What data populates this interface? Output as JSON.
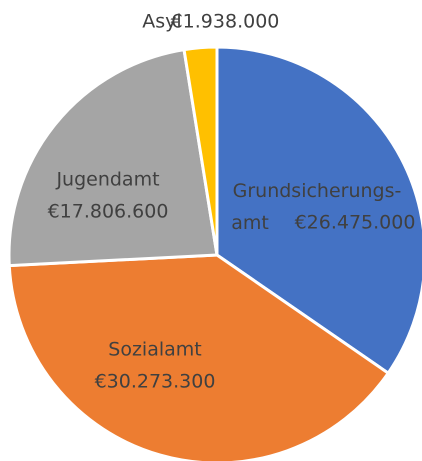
{
  "chart_data": {
    "type": "pie",
    "categories": [
      "Grundsicherungs-amt",
      "Sozialamt",
      "Jugendamt",
      "Asyl"
    ],
    "values": [
      26475000,
      30273300,
      17806600,
      1938000
    ],
    "value_labels": [
      "€26.475.000",
      "€30.273.300",
      "€17.806.600",
      "€1.938.000"
    ],
    "colors": [
      "#4472c4",
      "#ed7d31",
      "#a5a5a5",
      "#ffc000"
    ]
  }
}
